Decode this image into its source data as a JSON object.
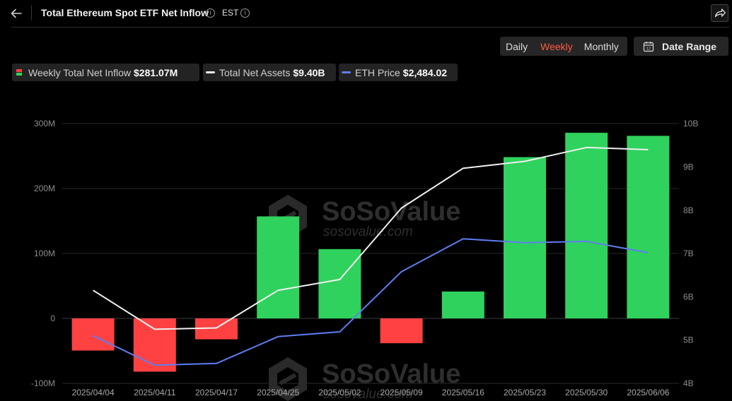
{
  "header": {
    "title": "Total Ethereum Spot ETF Net Inflow",
    "timezone": "EST",
    "icons": [
      "back-arrow-icon",
      "info-icon",
      "share-icon"
    ]
  },
  "controls": {
    "periods": [
      "Daily",
      "Weekly",
      "Monthly"
    ],
    "active_period": "Weekly",
    "date_range_label": "Date Range",
    "accent_color": "#ff5b41"
  },
  "legend": [
    {
      "name": "Weekly Total Net Inflow",
      "value": "$281.07M"
    },
    {
      "name": "Total Net Assets",
      "value": "$9.40B"
    },
    {
      "name": "ETH Price",
      "value": "$2,484.02"
    }
  ],
  "watermark": {
    "brand": "SoSoValue",
    "site": "sosovalue.com"
  },
  "chart_data": {
    "type": "bar",
    "categories": [
      "2025/04/04",
      "2025/04/11",
      "2025/04/17",
      "2025/04/25",
      "2025/05/02",
      "2025/05/09",
      "2025/05/16",
      "2025/05/23",
      "2025/05/30",
      "2025/06/06"
    ],
    "left_axis": {
      "ticks": [
        "300M",
        "200M",
        "100M",
        "0",
        "-100M"
      ],
      "ylim": [
        -100,
        300
      ],
      "unit": "M USD"
    },
    "right_axis": {
      "ticks": [
        "10B",
        "9B",
        "8B",
        "7B",
        "6B",
        "5B",
        "4B"
      ],
      "ylim": [
        4,
        10
      ],
      "unit": "B USD"
    },
    "series": [
      {
        "name": "Weekly Total Net Inflow",
        "type": "bar",
        "axis": "left",
        "values": [
          -49.5,
          -82.0,
          -32.2,
          157.1,
          106.7,
          -38.2,
          41.4,
          248.3,
          285.8,
          281.07
        ],
        "colors": {
          "positive": "#2fd25c",
          "negative": "#ff4141"
        }
      },
      {
        "name": "Total Net Assets",
        "type": "line",
        "axis": "right",
        "color": "#f0f0f0",
        "values": [
          6.15,
          5.25,
          5.28,
          6.15,
          6.4,
          8.05,
          8.97,
          9.13,
          9.45,
          9.4
        ]
      },
      {
        "name": "ETH Price",
        "type": "line",
        "axis": "right",
        "color": "#5f7df0",
        "values": [
          5.1,
          4.42,
          4.46,
          5.08,
          5.19,
          6.58,
          7.34,
          7.25,
          7.28,
          7.02
        ]
      }
    ],
    "grid": true
  }
}
